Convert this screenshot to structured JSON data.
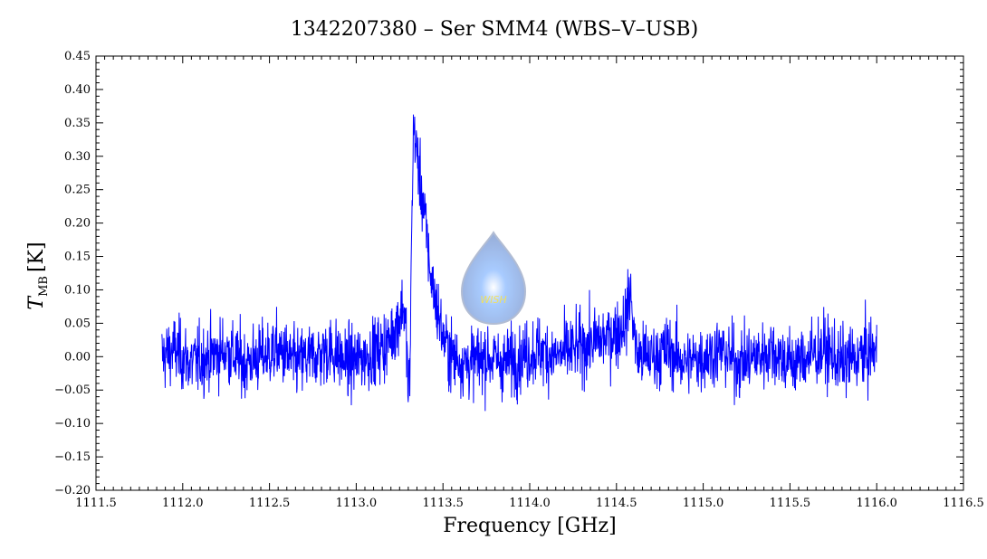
{
  "chart_data": {
    "type": "line",
    "title": "1342207380 – Ser SMM4 (WBS–V–USB)",
    "xlabel": "Frequency [GHz]",
    "ylabel_main": "T",
    "ylabel_sub": "MB",
    "ylabel_unit": "[K]",
    "xlim": [
      1111.5,
      1116.5
    ],
    "ylim": [
      -0.2,
      0.45
    ],
    "xticks": [
      1111.5,
      1112.0,
      1112.5,
      1113.0,
      1113.5,
      1114.0,
      1114.5,
      1115.0,
      1115.5,
      1116.0,
      1116.5
    ],
    "xtick_labels": [
      "1111.5",
      "1112.0",
      "1112.5",
      "1113.0",
      "1113.5",
      "1114.0",
      "1114.5",
      "1115.0",
      "1115.5",
      "1116.0",
      "1116.5"
    ],
    "yticks": [
      -0.2,
      -0.15,
      -0.1,
      -0.05,
      0.0,
      0.05,
      0.1,
      0.15,
      0.2,
      0.25,
      0.3,
      0.35,
      0.4,
      0.45
    ],
    "ytick_labels": [
      "−0.20",
      "−0.15",
      "−0.10",
      "−0.05",
      "0.00",
      "0.05",
      "0.10",
      "0.15",
      "0.20",
      "0.25",
      "0.30",
      "0.35",
      "0.40",
      "0.45"
    ],
    "grid": false,
    "series": [
      {
        "color": "#0000ff",
        "x": [
          1111.88,
          1111.95,
          1112.05,
          1112.15,
          1112.25,
          1112.35,
          1112.45,
          1112.55,
          1112.65,
          1112.75,
          1112.85,
          1112.95,
          1113.05,
          1113.12,
          1113.18,
          1113.22,
          1113.25,
          1113.27,
          1113.29,
          1113.3,
          1113.31,
          1113.32,
          1113.33,
          1113.34,
          1113.35,
          1113.37,
          1113.39,
          1113.41,
          1113.43,
          1113.46,
          1113.5,
          1113.55,
          1113.65,
          1113.75,
          1113.85,
          1113.95,
          1114.05,
          1114.15,
          1114.25,
          1114.35,
          1114.45,
          1114.52,
          1114.56,
          1114.58,
          1114.6,
          1114.62,
          1114.7,
          1114.8,
          1114.9,
          1115.0,
          1115.1,
          1115.2,
          1115.3,
          1115.4,
          1115.5,
          1115.6,
          1115.7,
          1115.8,
          1115.9,
          1116.0
        ],
        "y": [
          0.0,
          0.01,
          -0.01,
          0.0,
          0.01,
          -0.01,
          0.0,
          0.01,
          -0.01,
          0.0,
          0.01,
          -0.01,
          0.0,
          0.01,
          0.02,
          0.04,
          0.06,
          0.08,
          0.03,
          -0.06,
          -0.02,
          0.2,
          0.34,
          0.33,
          0.3,
          0.26,
          0.22,
          0.17,
          0.12,
          0.08,
          0.03,
          0.0,
          -0.01,
          0.0,
          -0.01,
          0.0,
          0.01,
          0.0,
          0.01,
          0.02,
          0.03,
          0.04,
          0.06,
          0.1,
          0.04,
          0.0,
          0.0,
          0.01,
          -0.01,
          0.0,
          0.01,
          -0.01,
          0.0,
          0.01,
          -0.01,
          0.0,
          0.01,
          -0.01,
          0.0,
          0.01
        ],
        "noise_rms": 0.04
      }
    ],
    "watermark": {
      "text": "WISH",
      "shape": "droplet-logo"
    }
  }
}
